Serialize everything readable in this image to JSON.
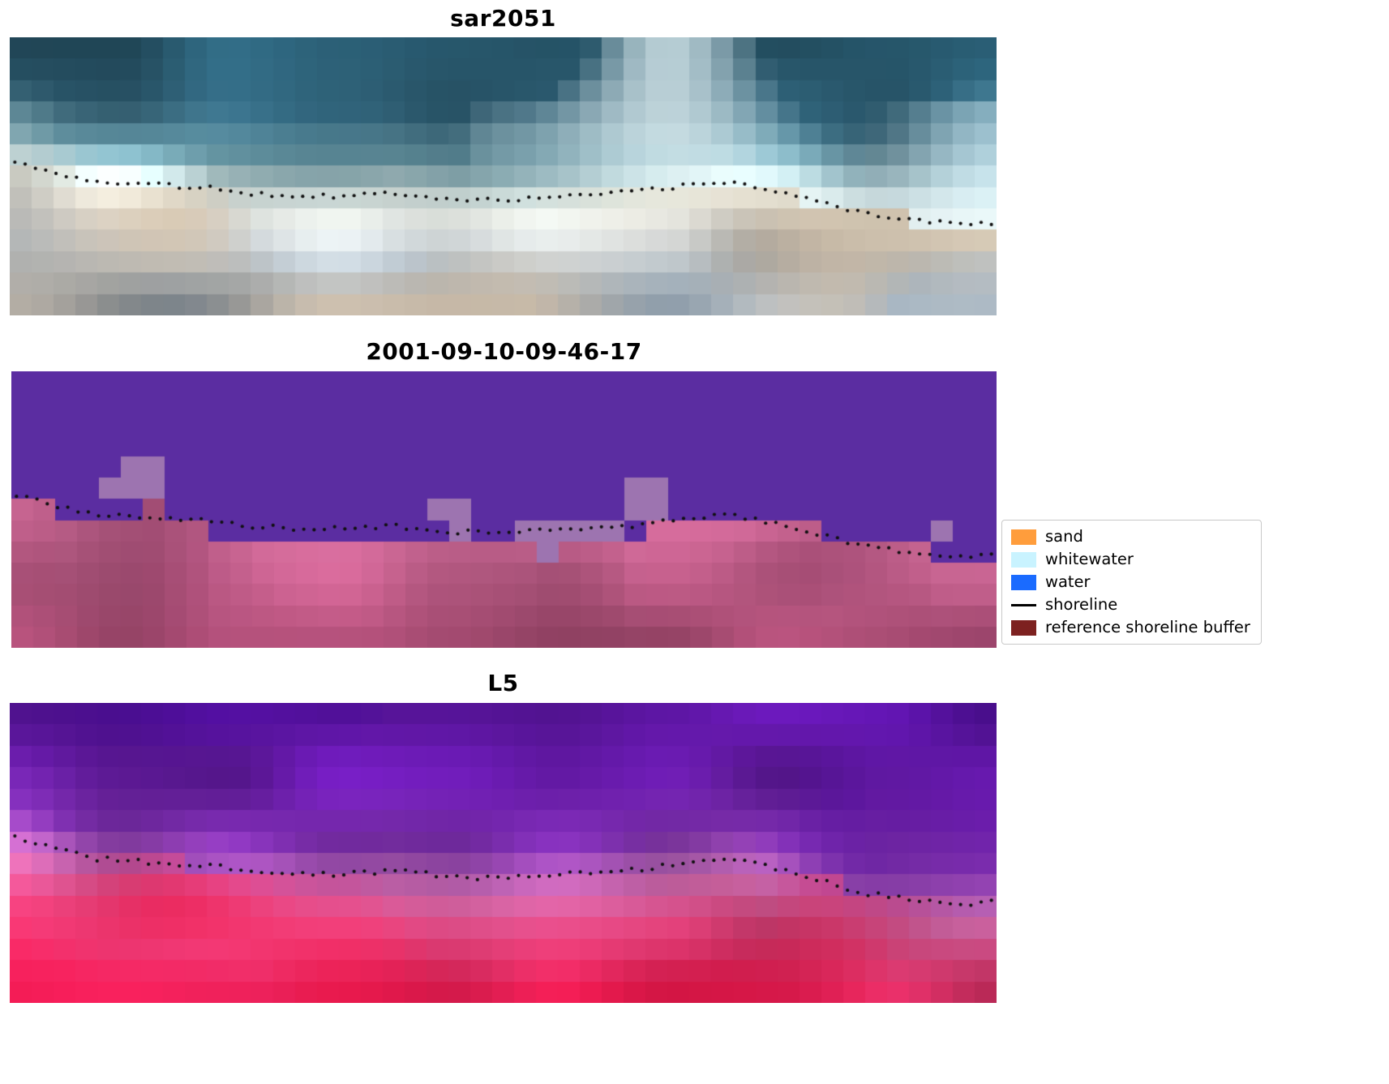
{
  "figure": {
    "background": "#ffffff"
  },
  "legend": {
    "items": [
      {
        "key": "sand",
        "label": "sand",
        "swatch_color": "#ff9d3c",
        "swatch_type": "patch"
      },
      {
        "key": "whitewater",
        "label": "whitewater",
        "swatch_color": "#c9f3ff",
        "swatch_type": "patch"
      },
      {
        "key": "water",
        "label": "water",
        "swatch_color": "#1a6bff",
        "swatch_type": "patch"
      },
      {
        "key": "shoreline",
        "label": "shoreline",
        "swatch_color": "#000000",
        "swatch_type": "line"
      },
      {
        "key": "buffer",
        "label": "reference shoreline buffer",
        "swatch_color": "#7d2120",
        "swatch_type": "patch"
      }
    ]
  },
  "chart_data": {
    "type": "heatmap",
    "description": "Three stacked coastal image panels (SAR image, classified image, Landsat-5 image) sharing one mapped shoreline drawn as black dots; legend gives classification colors.",
    "shoreline": {
      "x": [
        0.0,
        0.006,
        0.04,
        0.09,
        0.14,
        0.195,
        0.245,
        0.29,
        0.34,
        0.39,
        0.45,
        0.5,
        0.55,
        0.6,
        0.64,
        0.665,
        0.7,
        0.73,
        0.76,
        0.795,
        0.83,
        0.86,
        0.895,
        0.93,
        0.96,
        1.0
      ],
      "y": [
        0.44,
        0.45,
        0.48,
        0.52,
        0.53,
        0.54,
        0.56,
        0.57,
        0.57,
        0.56,
        0.58,
        0.585,
        0.575,
        0.565,
        0.555,
        0.54,
        0.53,
        0.52,
        0.54,
        0.565,
        0.6,
        0.63,
        0.647,
        0.66,
        0.67,
        0.665
      ]
    },
    "dot_count": 96,
    "dot_color": "#101010",
    "panels": [
      {
        "key": "sar",
        "kind": "satellite",
        "title": "sar2051",
        "cols": 45,
        "rows": 13,
        "seed": 7,
        "jitter": 0.26,
        "accent_amt": 1.0,
        "accent_top": "#eefbfd",
        "accent_bottom": "#d9c3a8",
        "stops": [
          [
            -0.6,
            "#255468"
          ],
          [
            -0.3,
            "#30637a"
          ],
          [
            -0.12,
            "#6fa3b2"
          ],
          [
            -0.02,
            "#d9edec"
          ],
          [
            0.06,
            "#e3e7e1"
          ],
          [
            0.18,
            "#b9bfc2"
          ],
          [
            0.32,
            "#9aa7b2"
          ],
          [
            0.55,
            "#8494a4"
          ]
        ]
      },
      {
        "key": "cls",
        "kind": "class",
        "title": "2001-09-10-09-46-17",
        "cols": 45,
        "rows": 13,
        "seed": 11,
        "jitter": 0.16,
        "water_color": "#5b2da1",
        "sand_top": "#c4638f",
        "sand_bottom": "#a4486e",
        "accent": "#8a3a60",
        "patch_color": "#9d74b0",
        "patches": [
          {
            "x": 0.108,
            "y": 0.335,
            "w": 0.047,
            "h": 0.04
          },
          {
            "x": 0.094,
            "y": 0.372,
            "w": 0.062,
            "h": 0.068
          },
          {
            "x": 0.423,
            "y": 0.446,
            "w": 0.044,
            "h": 0.058
          },
          {
            "x": 0.441,
            "y": 0.5,
            "w": 0.026,
            "h": 0.062
          },
          {
            "x": 0.515,
            "y": 0.515,
            "w": 0.108,
            "h": 0.075
          },
          {
            "x": 0.523,
            "y": 0.585,
            "w": 0.023,
            "h": 0.095
          },
          {
            "x": 0.627,
            "y": 0.385,
            "w": 0.044,
            "h": 0.135
          },
          {
            "x": 0.94,
            "y": 0.56,
            "w": 0.028,
            "h": 0.105
          }
        ]
      },
      {
        "key": "l5",
        "kind": "satellite",
        "title": "L5",
        "cols": 45,
        "rows": 14,
        "seed": 23,
        "jitter": 0.2,
        "accent_amt": 0.8,
        "accent_top": "#45089a",
        "accent_bottom": "#f01040",
        "stops": [
          [
            -0.6,
            "#5a14a2"
          ],
          [
            -0.3,
            "#651aa6"
          ],
          [
            -0.1,
            "#7d2fae"
          ],
          [
            0.0,
            "#b25fb6"
          ],
          [
            0.08,
            "#c9619e"
          ],
          [
            0.2,
            "#d23f74"
          ],
          [
            0.4,
            "#d51e52"
          ],
          [
            0.62,
            "#d01243"
          ]
        ]
      }
    ]
  }
}
